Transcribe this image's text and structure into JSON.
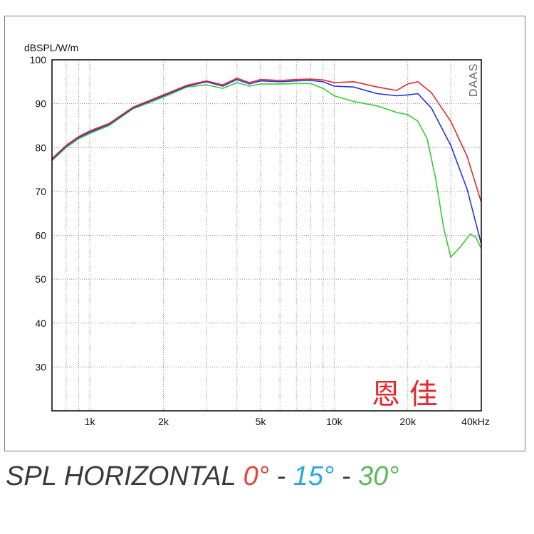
{
  "chart_data": {
    "type": "line",
    "ylabel": "dBSPL/W/m",
    "x_unit": "kHz",
    "watermark": "DAAS",
    "brand_label": "恩 佳",
    "xscale": "log",
    "xlim": [
      700,
      40000
    ],
    "ylim": [
      20,
      100
    ],
    "grid": true,
    "yticks": [
      30,
      40,
      50,
      60,
      70,
      80,
      90,
      100
    ],
    "ytick_labels": [
      "30",
      "40",
      "50",
      "60",
      "70",
      "80",
      "90",
      "100"
    ],
    "xticks": [
      1000,
      2000,
      5000,
      10000,
      20000,
      40000
    ],
    "xtick_labels": [
      "1k",
      "2k",
      "5k",
      "10k",
      "20k",
      "40kHz"
    ],
    "series": [
      {
        "name": "0°",
        "color": "#e8262b",
        "x": [
          700,
          800,
          900,
          1000,
          1200,
          1500,
          2000,
          2500,
          3000,
          3500,
          4000,
          4500,
          5000,
          6000,
          7000,
          8000,
          9000,
          10000,
          12000,
          15000,
          18000,
          20000,
          22000,
          25000,
          30000,
          35000,
          40000
        ],
        "y": [
          77.5,
          80.5,
          82.5,
          83.8,
          85.5,
          89.2,
          92.0,
          94.2,
          95.2,
          94.3,
          95.8,
          94.8,
          95.5,
          95.3,
          95.5,
          95.6,
          95.4,
          94.8,
          95.0,
          93.8,
          93.0,
          94.5,
          95.0,
          92.5,
          86.0,
          78.0,
          67.5
        ]
      },
      {
        "name": "15°",
        "color": "#2233dd",
        "x": [
          700,
          800,
          900,
          1000,
          1200,
          1500,
          2000,
          2500,
          3000,
          3500,
          4000,
          4500,
          5000,
          6000,
          7000,
          8000,
          9000,
          10000,
          12000,
          15000,
          18000,
          20000,
          22000,
          25000,
          30000,
          35000,
          40000
        ],
        "y": [
          77.3,
          80.3,
          82.3,
          83.5,
          85.3,
          89.0,
          91.8,
          94.0,
          95.0,
          94.0,
          95.5,
          94.5,
          95.2,
          95.0,
          95.2,
          95.3,
          95.0,
          94.0,
          93.8,
          92.3,
          91.8,
          92.0,
          92.3,
          89.0,
          80.5,
          70.5,
          58.0
        ]
      },
      {
        "name": "30°",
        "color": "#33cc33",
        "x": [
          700,
          800,
          900,
          1000,
          1200,
          1500,
          2000,
          2500,
          3000,
          3500,
          4000,
          4500,
          5000,
          6000,
          7000,
          8000,
          9000,
          10000,
          12000,
          15000,
          18000,
          20000,
          22000,
          24000,
          26000,
          28000,
          30000,
          33000,
          36000,
          38000,
          40000
        ],
        "y": [
          77.0,
          80.0,
          82.0,
          83.2,
          85.0,
          88.8,
          91.5,
          93.8,
          94.3,
          93.5,
          94.8,
          94.0,
          94.5,
          94.5,
          94.6,
          94.6,
          93.5,
          91.8,
          90.5,
          89.5,
          88.0,
          87.5,
          86.0,
          82.0,
          73.0,
          62.0,
          55.0,
          57.5,
          60.3,
          59.5,
          57.0
        ]
      }
    ]
  },
  "caption": {
    "text": "SPL HORIZONTAL ",
    "a0": "0°",
    "sep1": " - ",
    "a15": "15°",
    "sep2": " - ",
    "a30": "30°",
    "colors": {
      "base": "#3a3a3a",
      "a0": "#e8413a",
      "a15": "#29a8e0",
      "a30": "#5cb85c"
    }
  }
}
